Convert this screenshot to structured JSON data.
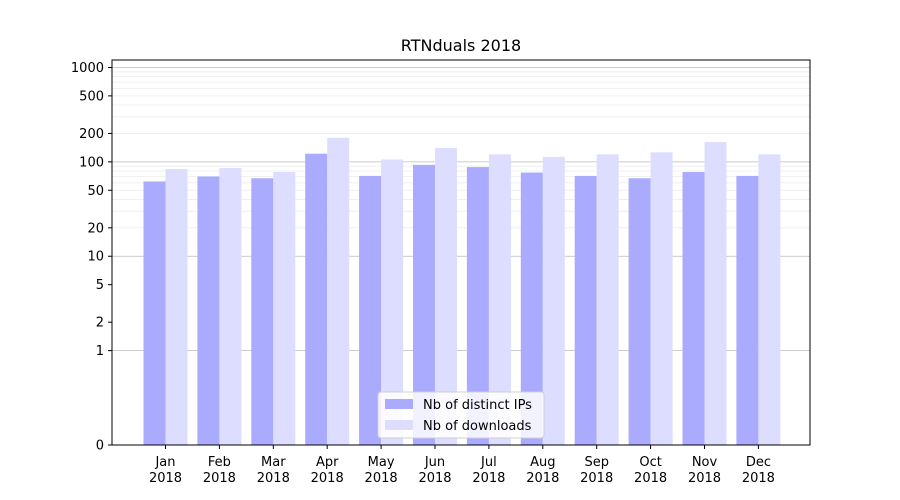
{
  "chart_data": {
    "type": "bar",
    "title": "RTNduals 2018",
    "xlabel": "",
    "ylabel": "",
    "yscale": "symlog",
    "ylim": [
      0,
      1200
    ],
    "yticks": [
      0,
      1,
      2,
      5,
      10,
      20,
      50,
      100,
      200,
      500,
      1000
    ],
    "grid": true,
    "legend_position": "lower-center",
    "categories": [
      [
        "Jan",
        "2018"
      ],
      [
        "Feb",
        "2018"
      ],
      [
        "Mar",
        "2018"
      ],
      [
        "Apr",
        "2018"
      ],
      [
        "May",
        "2018"
      ],
      [
        "Jun",
        "2018"
      ],
      [
        "Jul",
        "2018"
      ],
      [
        "Aug",
        "2018"
      ],
      [
        "Sep",
        "2018"
      ],
      [
        "Oct",
        "2018"
      ],
      [
        "Nov",
        "2018"
      ],
      [
        "Dec",
        "2018"
      ]
    ],
    "series": [
      {
        "name": "Nb of distinct IPs",
        "color": "#aaaaff",
        "values": [
          62,
          70,
          67,
          122,
          71,
          93,
          88,
          77,
          71,
          67,
          78,
          71
        ]
      },
      {
        "name": "Nb of downloads",
        "color": "#ddddff",
        "values": [
          84,
          86,
          78,
          180,
          106,
          140,
          120,
          113,
          120,
          126,
          162,
          120
        ]
      }
    ]
  }
}
